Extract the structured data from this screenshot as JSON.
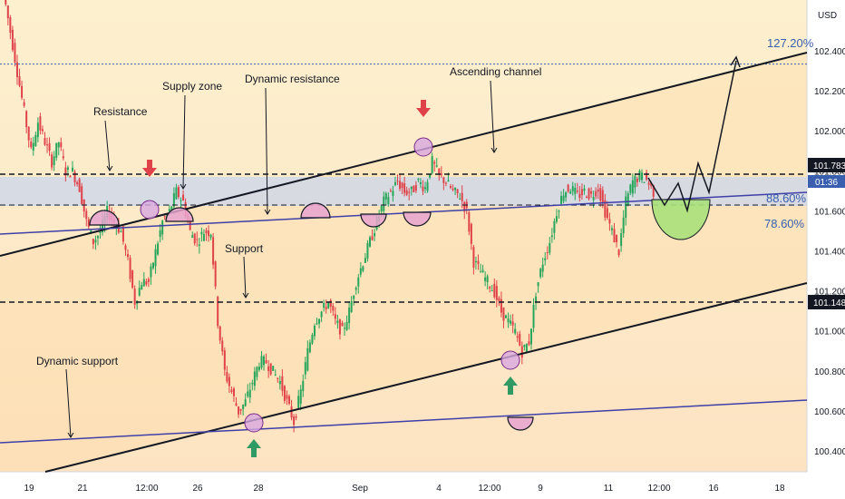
{
  "chart_data": {
    "type": "candlestick",
    "currency": "USD",
    "y_axis": {
      "ticks": [
        "102.400",
        "102.200",
        "102.000",
        "101.800",
        "101.600",
        "101.400",
        "101.200",
        "101.000",
        "100.800",
        "100.600",
        "100.400"
      ],
      "range": [
        100.32,
        102.56
      ]
    },
    "x_axis": {
      "ticks": [
        "19",
        "21",
        "12:00",
        "26",
        "28",
        "Sep",
        "4",
        "12:00",
        "9",
        "11",
        "12:00",
        "16",
        "18"
      ]
    },
    "price_tags": {
      "upper": "101.783",
      "current_time": "01:36",
      "lower": "101.148"
    },
    "annotations": {
      "resistance": "Resistance",
      "supply_zone": "Supply zone",
      "dynamic_resistance": "Dynamic resistance",
      "ascending_channel": "Ascending channel",
      "support": "Support",
      "dynamic_support": "Dynamic support"
    },
    "fib_levels": [
      {
        "label": "127.20%",
        "value": 102.37
      },
      {
        "label": "88.60%",
        "value": 101.68
      },
      {
        "label": "78.60%",
        "value": 101.58
      }
    ],
    "horizontal_levels": [
      101.783,
      101.148
    ],
    "supply_zone_range": [
      101.63,
      101.75
    ],
    "close_series": [
      102.7,
      102.5,
      102.3,
      102.1,
      101.9,
      102.05,
      101.95,
      101.85,
      101.95,
      101.8,
      101.8,
      101.72,
      101.55,
      101.45,
      101.5,
      101.6,
      101.55,
      101.5,
      101.35,
      101.15,
      101.25,
      101.25,
      101.4,
      101.55,
      101.6,
      101.7,
      101.65,
      101.5,
      101.45,
      101.5,
      101.5,
      101.05,
      100.8,
      100.7,
      100.6,
      100.65,
      100.75,
      100.85,
      100.85,
      100.8,
      100.75,
      100.65,
      100.55,
      100.7,
      100.9,
      101.05,
      101.1,
      101.15,
      101.05,
      101.0,
      101.1,
      101.25,
      101.35,
      101.45,
      101.55,
      101.65,
      101.7,
      101.75,
      101.7,
      101.7,
      101.75,
      101.72,
      101.85,
      101.78,
      101.75,
      101.7,
      101.68,
      101.6,
      101.35,
      101.3,
      101.25,
      101.2,
      101.1,
      101.05,
      101.0,
      100.9,
      100.95,
      101.2,
      101.35,
      101.45,
      101.6,
      101.7,
      101.72,
      101.68,
      101.7,
      101.68,
      101.72,
      101.6,
      101.5,
      101.4,
      101.65,
      101.75,
      101.78,
      101.76,
      101.7
    ]
  }
}
